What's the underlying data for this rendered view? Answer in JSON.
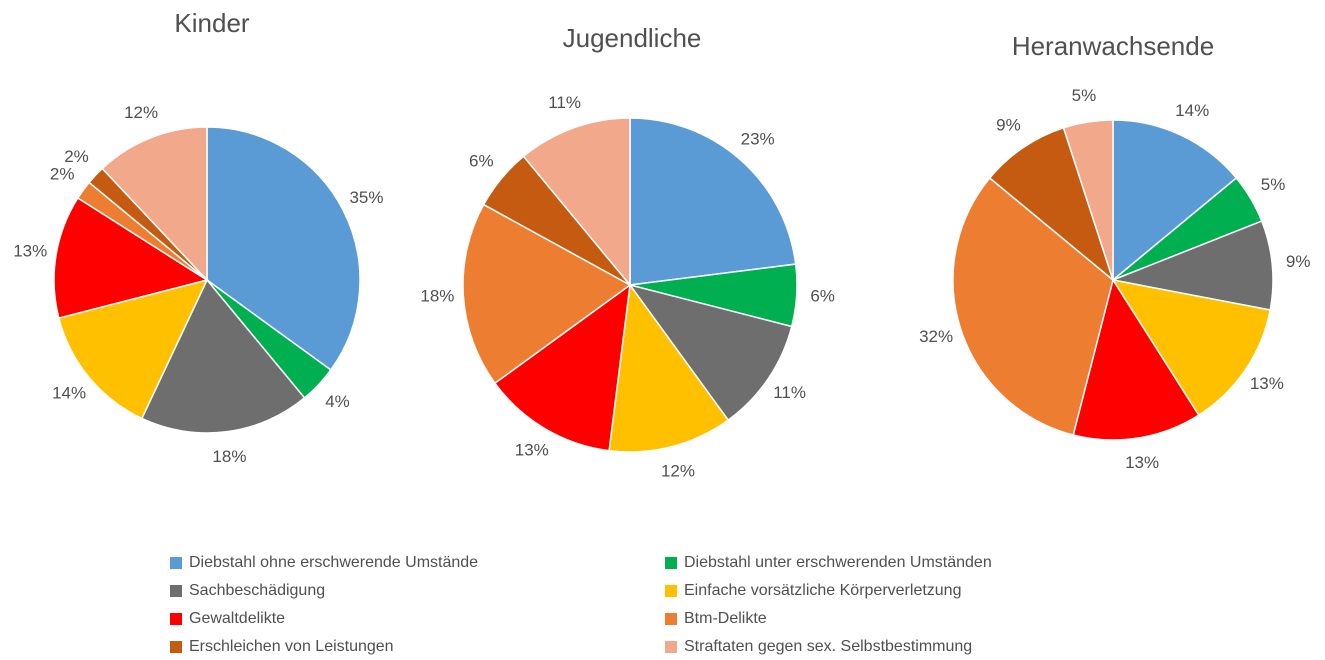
{
  "chart_data": [
    {
      "type": "pie",
      "title": "Kinder",
      "categories": [
        "Diebstahl ohne erschwerende Umstände",
        "Diebstahl unter erschwerenden Umständen",
        "Sachbeschädigung",
        "Einfache vorsätzliche Körperverletzung",
        "Gewaltdelikte",
        "Btm-Delikte",
        "Erschleichen von Leistungen",
        "Straftaten gegen sex. Selbstbestimmung"
      ],
      "values": [
        35,
        4,
        18,
        14,
        13,
        2,
        2,
        12
      ],
      "value_labels": [
        "35%",
        "4%",
        "18%",
        "14%",
        "13%",
        "2%",
        "2%",
        "12%"
      ],
      "colors": [
        "#5b9bd5",
        "#00b050",
        "#6e6e6e",
        "#ffc000",
        "#ff0000",
        "#ed7d31",
        "#c55a11",
        "#f2a98b"
      ]
    },
    {
      "type": "pie",
      "title": "Jugendliche",
      "categories": [
        "Diebstahl ohne erschwerende Umstände",
        "Diebstahl unter erschwerenden Umständen",
        "Sachbeschädigung",
        "Einfache vorsätzliche Körperverletzung",
        "Gewaltdelikte",
        "Btm-Delikte",
        "Erschleichen von Leistungen",
        "Straftaten gegen sex. Selbstbestimmung"
      ],
      "values": [
        23,
        6,
        11,
        12,
        13,
        18,
        6,
        11
      ],
      "value_labels": [
        "23%",
        "6%",
        "11%",
        "12%",
        "13%",
        "18%",
        "6%",
        "11%"
      ],
      "colors": [
        "#5b9bd5",
        "#00b050",
        "#6e6e6e",
        "#ffc000",
        "#ff0000",
        "#ed7d31",
        "#c55a11",
        "#f2a98b"
      ]
    },
    {
      "type": "pie",
      "title": "Heranwachsende",
      "categories": [
        "Diebstahl ohne erschwerende Umstände",
        "Diebstahl unter erschwerenden Umständen",
        "Sachbeschädigung",
        "Einfache vorsätzliche Körperverletzung",
        "Gewaltdelikte",
        "Btm-Delikte",
        "Erschleichen von Leistungen",
        "Straftaten gegen sex. Selbstbestimmung"
      ],
      "values": [
        14,
        5,
        9,
        13,
        13,
        32,
        9,
        5
      ],
      "value_labels": [
        "14%",
        "5%",
        "9%",
        "13%",
        "13%",
        "32%",
        "9%",
        "5%"
      ],
      "colors": [
        "#5b9bd5",
        "#00b050",
        "#6e6e6e",
        "#ffc000",
        "#ff0000",
        "#ed7d31",
        "#c55a11",
        "#f2a98b"
      ]
    }
  ]
}
